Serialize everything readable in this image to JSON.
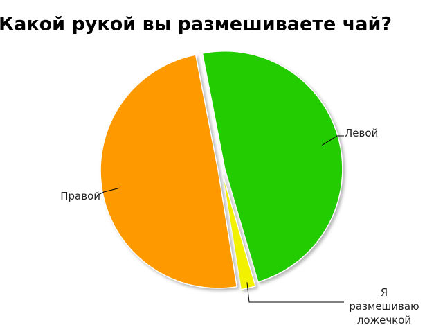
{
  "chart_data": {
    "type": "pie",
    "title": "Какой рукой вы размешиваете чай?",
    "categories": [
      "Левой",
      "Я размешиваю ложечкой",
      "Правой"
    ],
    "values": [
      48.5,
      2,
      49.5
    ],
    "colors": [
      "#22cc00",
      "#f2f200",
      "#ff9900"
    ]
  }
}
